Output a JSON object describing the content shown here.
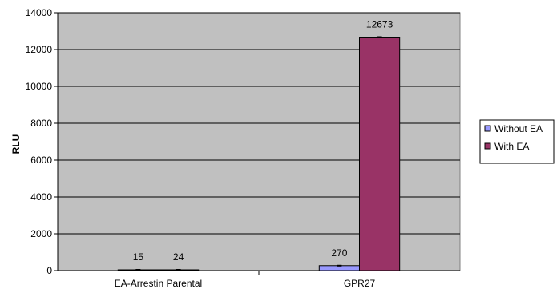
{
  "chart_data": {
    "type": "bar",
    "categories": [
      "EA-Arrestin Parental",
      "GPR27"
    ],
    "series": [
      {
        "name": "Without EA",
        "values": [
          15,
          270
        ],
        "color": "#9999ff"
      },
      {
        "name": "With EA",
        "values": [
          24,
          12673
        ],
        "color": "#993366"
      }
    ],
    "data_labels": [
      [
        "15",
        "270"
      ],
      [
        "24",
        "12673"
      ]
    ],
    "title": "",
    "xlabel": "",
    "ylabel": "RLU",
    "ylim": [
      0,
      14000
    ],
    "yticks": [
      0,
      2000,
      4000,
      6000,
      8000,
      10000,
      12000,
      14000
    ],
    "grid": true,
    "plot_background": "#c0c0c0",
    "legend_position": "right",
    "error_bars": true
  }
}
